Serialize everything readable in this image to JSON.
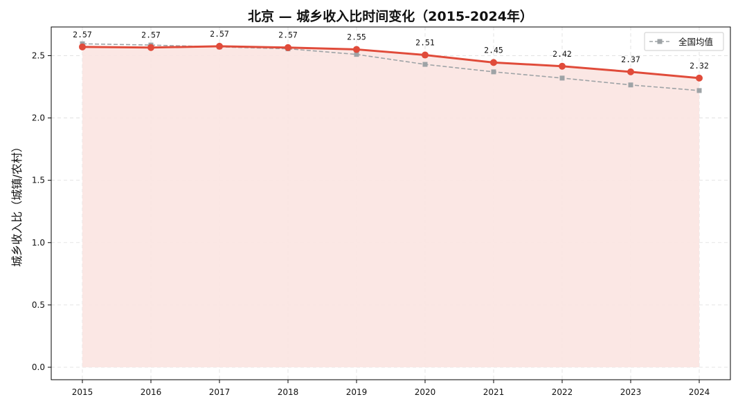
{
  "chart_data": {
    "type": "line",
    "title": "北京 — 城乡收入比时间变化（2015-2024年）",
    "xlabel": "",
    "ylabel": "城乡收入比（城镇/农村）",
    "x": [
      "2015",
      "2016",
      "2017",
      "2018",
      "2019",
      "2020",
      "2021",
      "2022",
      "2023",
      "2024"
    ],
    "ylim": [
      -0.1,
      2.73
    ],
    "yticks": [
      "0.0",
      "0.5",
      "1.0",
      "1.5",
      "2.0",
      "2.5"
    ],
    "grid": true,
    "legend_position": "top-right",
    "series": [
      {
        "name": "",
        "color": "#e04b3a",
        "fill": "#fbe4e1",
        "marker": "circle",
        "line": "solid",
        "values": [
          2.57,
          2.565,
          2.575,
          2.565,
          2.55,
          2.505,
          2.445,
          2.415,
          2.37,
          2.32
        ],
        "labels": [
          "2.57",
          "2.57",
          "2.57",
          "2.57",
          "2.55",
          "2.51",
          "2.45",
          "2.42",
          "2.37",
          "2.32"
        ]
      },
      {
        "name": "全国均值",
        "color": "#9ea3a6",
        "marker": "square",
        "line": "dashed",
        "values": [
          2.595,
          2.585,
          2.57,
          2.555,
          2.51,
          2.43,
          2.37,
          2.32,
          2.265,
          2.22
        ]
      }
    ]
  }
}
